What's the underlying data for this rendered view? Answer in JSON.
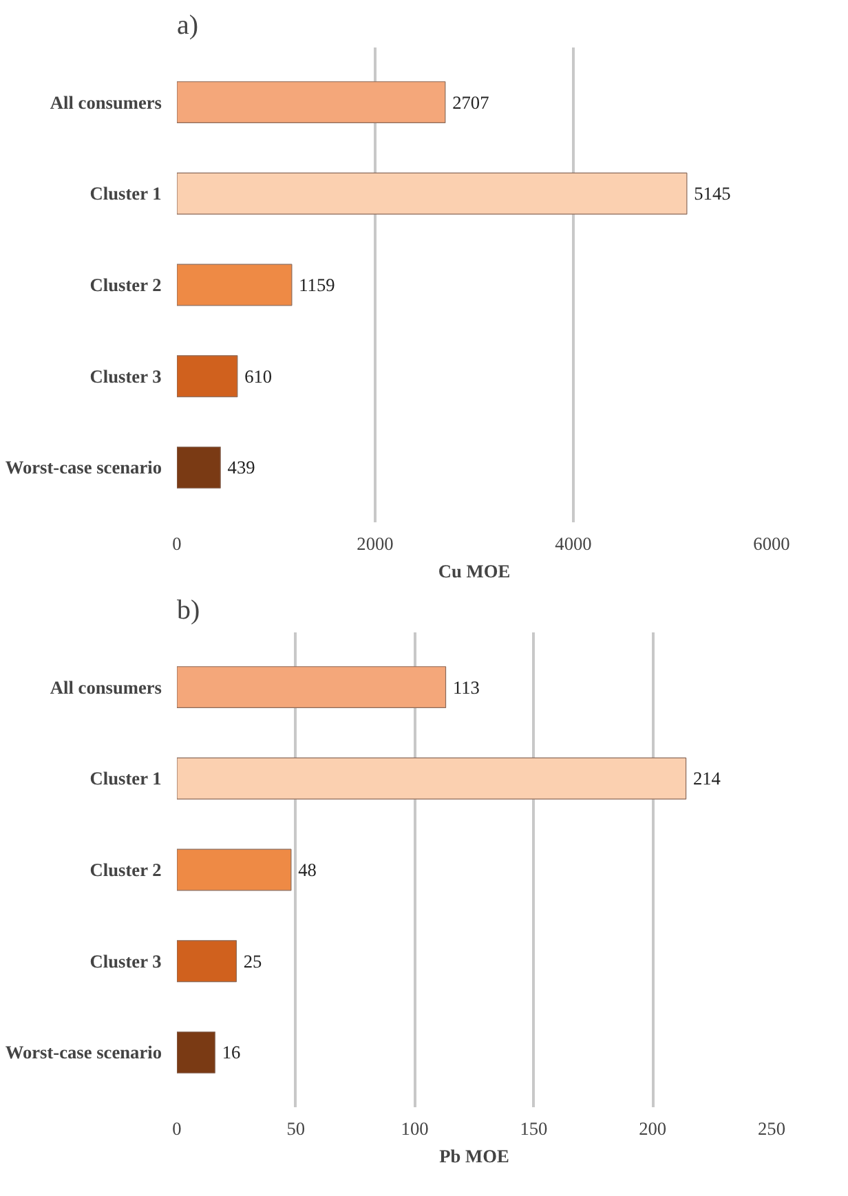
{
  "chart_data": [
    {
      "type": "bar",
      "orientation": "horizontal",
      "title": "a)",
      "xlabel": "Cu MOE",
      "categories": [
        "All consumers",
        "Cluster 1",
        "Cluster 2",
        "Cluster 3",
        "Worst-case scenario"
      ],
      "values": [
        2707,
        5145,
        1159,
        610,
        439
      ],
      "colors": [
        "#f4a77a",
        "#fbd0b0",
        "#ee8a45",
        "#d0611e",
        "#7a3a14"
      ],
      "xlim": [
        0,
        6000
      ],
      "xticks": [
        0,
        2000,
        4000,
        6000
      ],
      "grid": "x",
      "data_labels": true
    },
    {
      "type": "bar",
      "orientation": "horizontal",
      "title": "b)",
      "xlabel": "Pb MOE",
      "categories": [
        "All consumers",
        "Cluster 1",
        "Cluster 2",
        "Cluster 3",
        "Worst-case scenario"
      ],
      "values": [
        113,
        214,
        48,
        25,
        16
      ],
      "colors": [
        "#f4a77a",
        "#fbd0b0",
        "#ee8a45",
        "#d0611e",
        "#7a3a14"
      ],
      "xlim": [
        0,
        250
      ],
      "xticks": [
        0,
        50,
        100,
        150,
        200,
        250
      ],
      "grid": "x",
      "data_labels": true
    }
  ]
}
